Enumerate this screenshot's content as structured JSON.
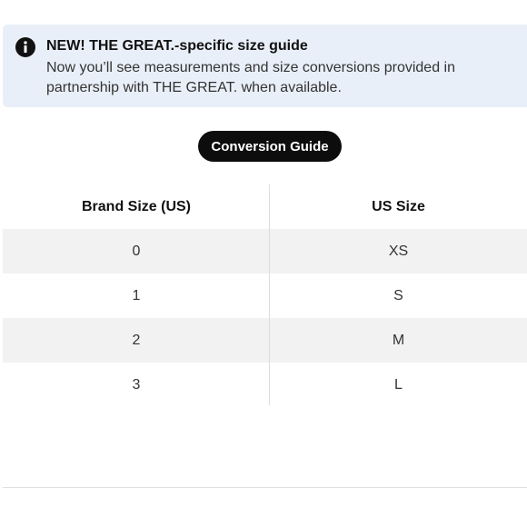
{
  "banner": {
    "icon": "info-icon",
    "title": "NEW! THE GREAT.-specific size guide",
    "body": "Now you’ll see measurements and size conversions provided in partnership with THE GREAT. when available."
  },
  "conversion_button": {
    "label": "Conversion Guide"
  },
  "size_table": {
    "headers": [
      "Brand Size (US)",
      "US Size"
    ],
    "rows": [
      [
        "0",
        "XS"
      ],
      [
        "1",
        "S"
      ],
      [
        "2",
        "M"
      ],
      [
        "3",
        "L"
      ]
    ]
  }
}
